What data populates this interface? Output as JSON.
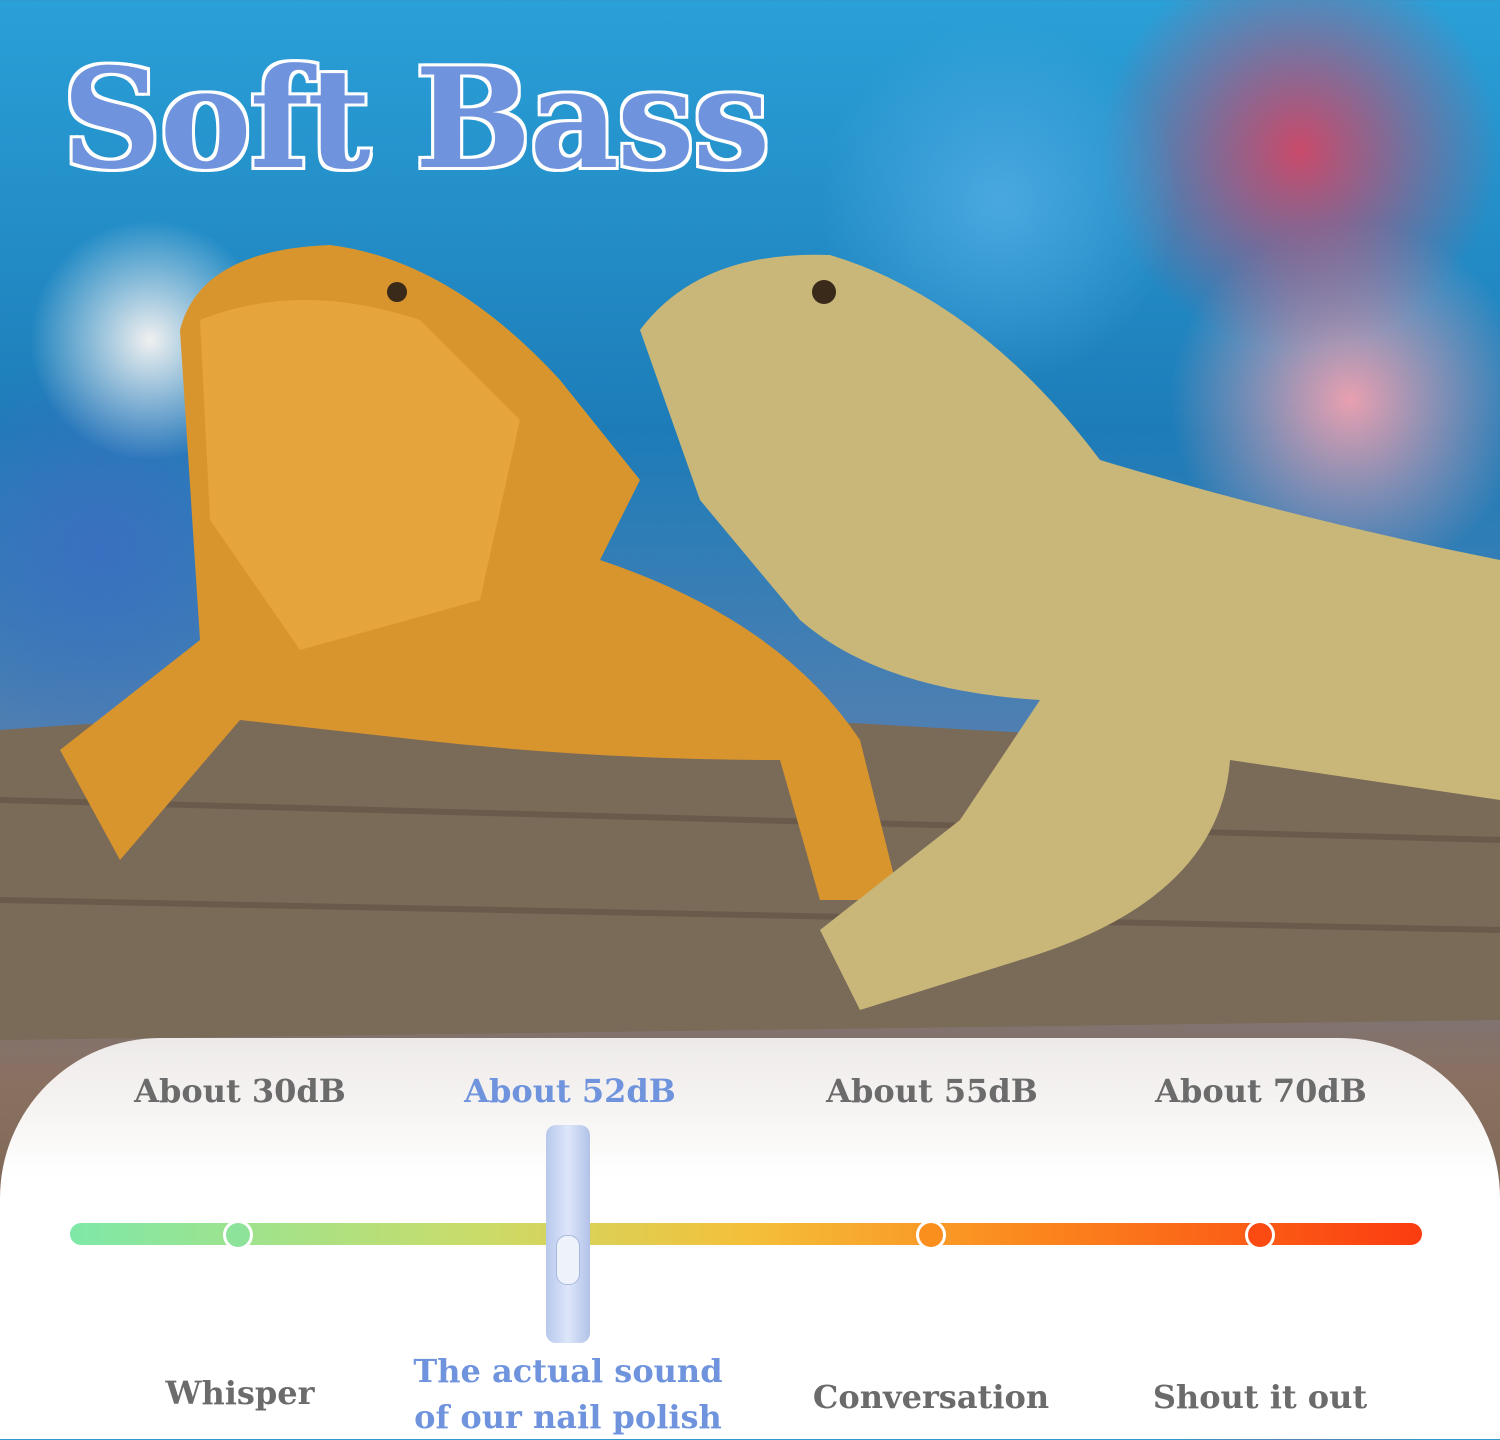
{
  "title": "Soft Bass",
  "levels": [
    {
      "db": "About 30dB",
      "label": "Whisper",
      "color": "#8ee39a"
    },
    {
      "db": "About 52dB",
      "label_line1": "The actual sound",
      "label_line2": "of our nail polish",
      "highlight": true
    },
    {
      "db": "About 55dB",
      "label": "Conversation",
      "color": "#fb8f1d"
    },
    {
      "db": "About 70dB",
      "label": "Shout it out",
      "color": "#fb4a12"
    }
  ],
  "colors": {
    "accent": "#6f93dc",
    "text": "#6b6b6b"
  }
}
